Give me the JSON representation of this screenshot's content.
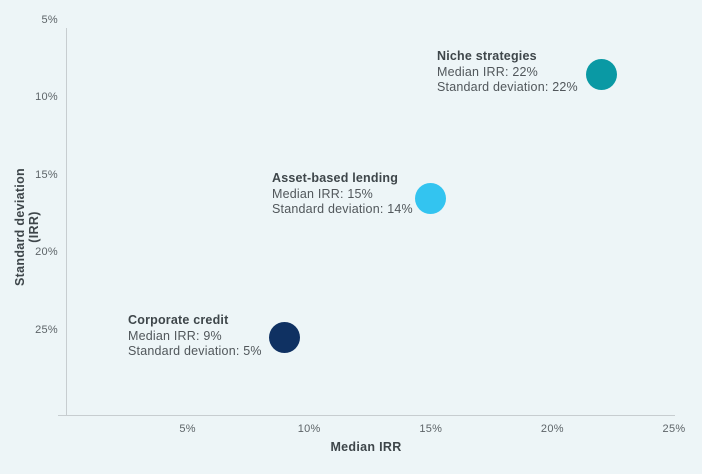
{
  "chart_data": {
    "type": "scatter",
    "title": "",
    "xlabel": "Median IRR",
    "ylabel": "Standard deviation (IRR)",
    "xlim": [
      0,
      25
    ],
    "ylim": [
      0,
      25
    ],
    "grid": false,
    "legend": "none",
    "x_ticks": [
      5,
      10,
      15,
      20,
      25
    ],
    "x_tick_labels": [
      "5%",
      "10%",
      "15%",
      "20%",
      "25%"
    ],
    "y_ticks": [
      5,
      10,
      15,
      20,
      25
    ],
    "y_tick_labels": [
      "5%",
      "10%",
      "15%",
      "20%",
      "25%"
    ],
    "points": [
      {
        "name": "Corporate credit",
        "x": 9,
        "y": 5,
        "median_irr": "9%",
        "std_dev": "5%",
        "color": "#0f3162",
        "label_lines": [
          "Corporate credit",
          "Median IRR: 9%",
          "Standard deviation: 5%"
        ]
      },
      {
        "name": "Asset-based lending",
        "x": 15,
        "y": 14,
        "median_irr": "15%",
        "std_dev": "14%",
        "color": "#33c4f0",
        "label_lines": [
          "Asset-based lending",
          "Median IRR: 15%",
          "Standard deviation: 14%"
        ]
      },
      {
        "name": "Niche strategies",
        "x": 22,
        "y": 22,
        "median_irr": "22%",
        "std_dev": "22%",
        "color": "#0a99a4",
        "label_lines": [
          "Niche strategies",
          "Median IRR: 22%",
          "Standard deviation: 22%"
        ]
      }
    ]
  },
  "colors": {
    "background": "#edf5f7",
    "axis_line": "#c7cdd0",
    "tick_label": "#5d6468",
    "axis_title": "#3e464a",
    "annotation_title": "#3e464a",
    "annotation_body": "#51575b"
  }
}
